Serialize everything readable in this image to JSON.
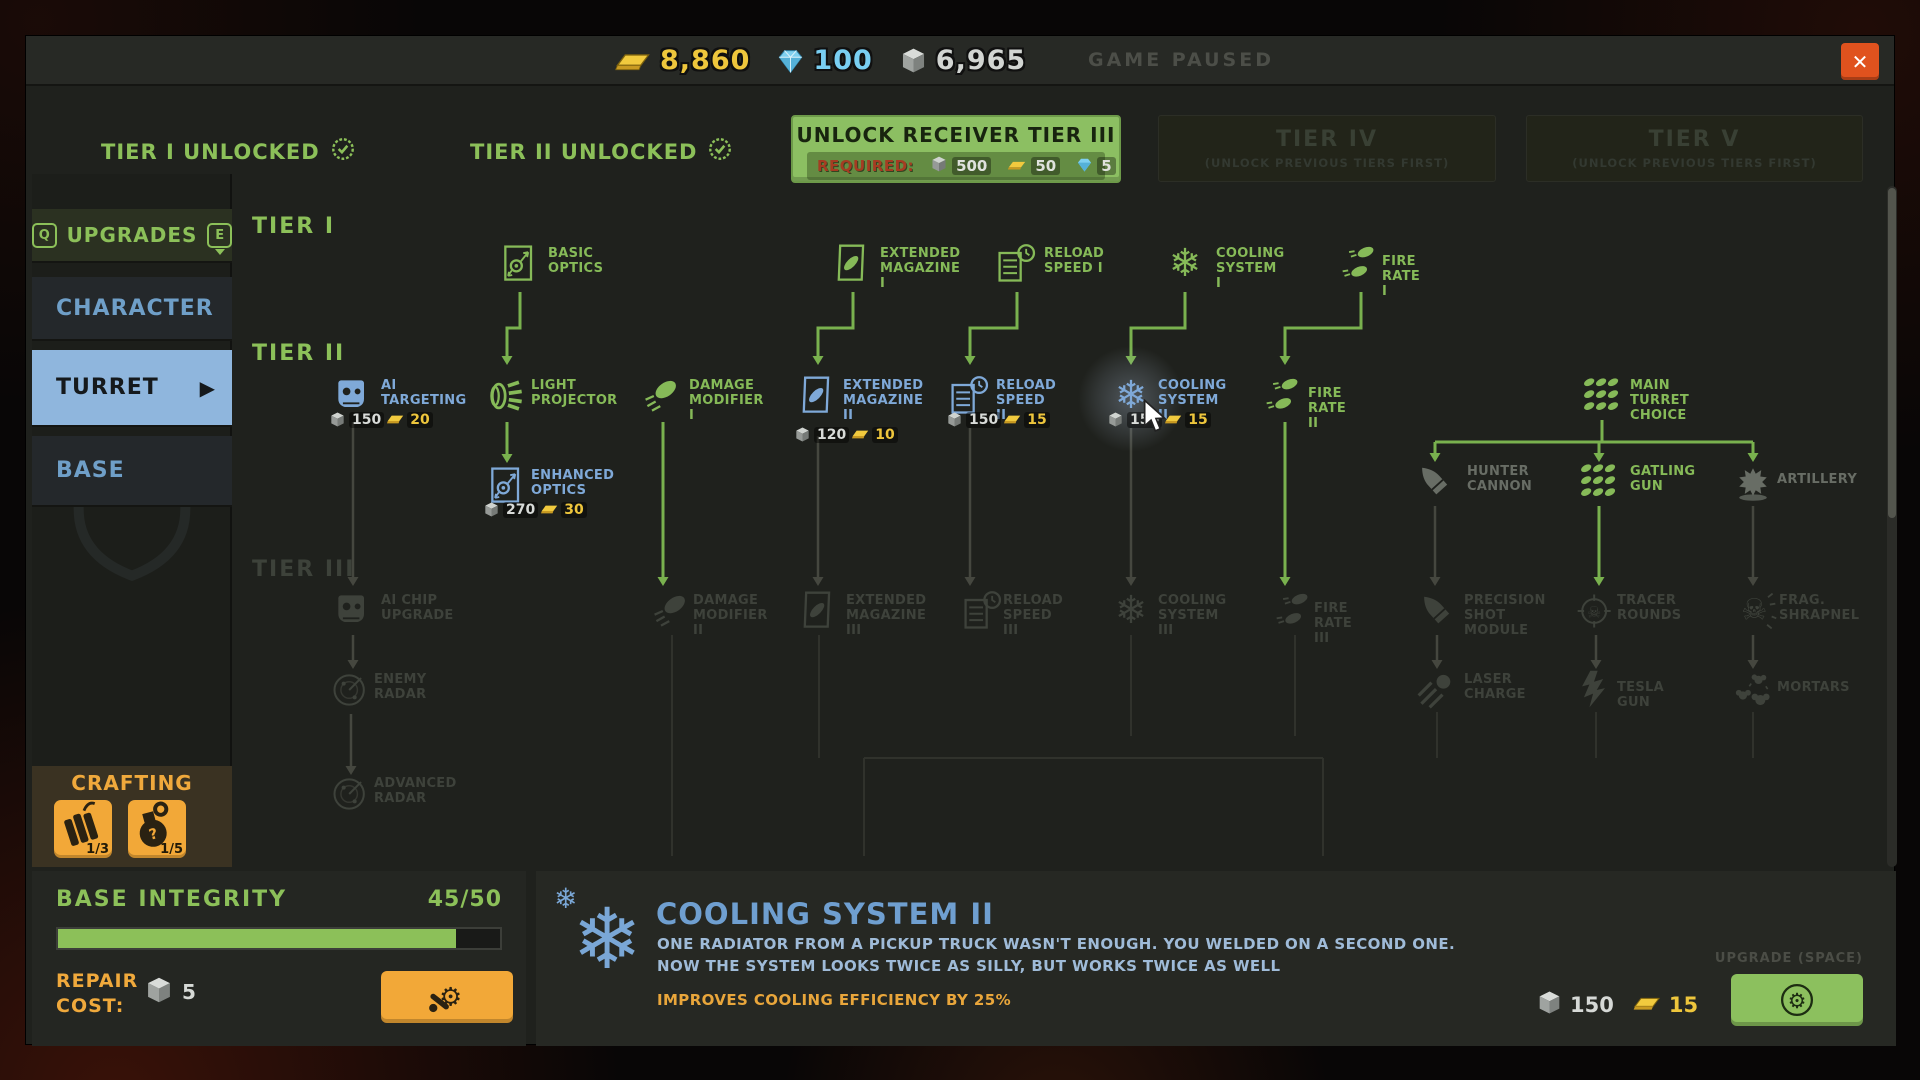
{
  "topbar": {
    "gold": "8,860",
    "diamond": "100",
    "metal": "6,965",
    "paused": "GAME PAUSED",
    "close": "✕"
  },
  "tier_bar": {
    "tier1_unlocked": "TIER I UNLOCKED",
    "tier2_unlocked": "TIER II UNLOCKED",
    "unlock_button": {
      "label": "UNLOCK RECEIVER TIER III",
      "required": "REQUIRED:",
      "metal": "500",
      "gold": "50",
      "diamond": "5"
    },
    "tier4": {
      "title": "TIER IV",
      "subtitle": "(UNLOCK PREVIOUS TIERS FIRST)"
    },
    "tier5": {
      "title": "TIER V",
      "subtitle": "(UNLOCK PREVIOUS TIERS FIRST)"
    }
  },
  "sidebar": {
    "key_left": "Q",
    "title": "UPGRADES",
    "key_right": "E",
    "tabs": [
      {
        "id": "character",
        "label": "CHARACTER",
        "selected": false
      },
      {
        "id": "turret",
        "label": "TURRET",
        "selected": true
      },
      {
        "id": "base",
        "label": "BASE",
        "selected": false
      }
    ]
  },
  "tree": {
    "section_labels": {
      "tier1": "TIER I",
      "tier2": "TIER II",
      "tier3": "TIER III"
    },
    "nodes": [
      {
        "id": "basic-optics",
        "label": "BASIC\nOPTICS",
        "state": "green",
        "icon": "optics"
      },
      {
        "id": "extended-magazine-1",
        "label": "EXTENDED\nMAGAZINE I",
        "state": "green",
        "icon": "mag"
      },
      {
        "id": "reload-speed-1",
        "label": "RELOAD\nSPEED I",
        "state": "green",
        "icon": "reload"
      },
      {
        "id": "cooling-system-1",
        "label": "COOLING\nSYSTEM I",
        "state": "green",
        "icon": "snow"
      },
      {
        "id": "fire-rate-1",
        "label": "FIRE RATE I",
        "state": "green",
        "icon": "bullets2"
      },
      {
        "id": "ai-targeting",
        "label": "AI\nTARGETING",
        "state": "blue",
        "icon": "robot",
        "cost_metal": "150",
        "cost_gold": "20"
      },
      {
        "id": "light-projector",
        "label": "LIGHT\nPROJECTOR",
        "state": "green",
        "icon": "spotlight"
      },
      {
        "id": "damage-modifier-1",
        "label": "DAMAGE\nMODIFIER I",
        "state": "green",
        "icon": "bullet"
      },
      {
        "id": "extended-magazine-2",
        "label": "EXTENDED\nMAGAZINE\nII",
        "state": "blue",
        "icon": "mag",
        "cost_metal": "120",
        "cost_gold": "10"
      },
      {
        "id": "reload-speed-2",
        "label": "RELOAD\nSPEED II",
        "state": "blue",
        "icon": "reload",
        "cost_metal": "150",
        "cost_gold": "15"
      },
      {
        "id": "cooling-system-2",
        "label": "COOLING\nSYSTEM II",
        "state": "blue",
        "icon": "snow",
        "cost_metal": "150",
        "cost_gold": "15",
        "highlight": true
      },
      {
        "id": "fire-rate-2",
        "label": "FIRE RATE II",
        "state": "green",
        "icon": "bullets2"
      },
      {
        "id": "main-turret-choice",
        "label": "MAIN\nTURRET\nCHOICE",
        "state": "green",
        "icon": "bullets9"
      },
      {
        "id": "enhanced-optics",
        "label": "ENHANCED\nOPTICS",
        "state": "blue",
        "icon": "optics",
        "cost_metal": "270",
        "cost_gold": "30"
      },
      {
        "id": "hunter-cannon",
        "label": "HUNTER\nCANNON",
        "state": "mid",
        "icon": "bigbullet"
      },
      {
        "id": "gatling-gun",
        "label": "GATLING\nGUN",
        "state": "green",
        "icon": "bullets9"
      },
      {
        "id": "artillery",
        "label": "ARTILLERY",
        "state": "mid",
        "icon": "explosion"
      },
      {
        "id": "ai-chip-upgrade",
        "label": "AI CHIP\nUPGRADE",
        "state": "dim",
        "icon": "robot"
      },
      {
        "id": "damage-modifier-2",
        "label": "DAMAGE\nMODIFIER II",
        "state": "dim",
        "icon": "bullet"
      },
      {
        "id": "extended-magazine-3",
        "label": "EXTENDED\nMAGAZINE\nIII",
        "state": "dim",
        "icon": "mag"
      },
      {
        "id": "reload-speed-3",
        "label": "RELOAD\nSPEED III",
        "state": "dim",
        "icon": "reload"
      },
      {
        "id": "cooling-system-3",
        "label": "COOLING\nSYSTEM III",
        "state": "dim",
        "icon": "snow"
      },
      {
        "id": "fire-rate-3",
        "label": "FIRE RATE III",
        "state": "dim",
        "icon": "bullets2"
      },
      {
        "id": "precision-shot-module",
        "label": "PRECISION\nSHOT\nMODULE",
        "state": "dim",
        "icon": "bigbullet"
      },
      {
        "id": "tracer-rounds",
        "label": "TRACER\nROUNDS",
        "state": "dim",
        "icon": "skulltarget"
      },
      {
        "id": "frag-shrapnel",
        "label": "FRAG.\nSHRAPNEL",
        "state": "dim",
        "icon": "fragskull"
      },
      {
        "id": "enemy-radar",
        "label": "ENEMY\nRADAR",
        "state": "dim",
        "icon": "radar"
      },
      {
        "id": "laser-charge",
        "label": "LASER\nCHARGE",
        "state": "dim",
        "icon": "laser"
      },
      {
        "id": "tesla-gun",
        "label": "TESLA GUN",
        "state": "dim",
        "icon": "tesla"
      },
      {
        "id": "mortars",
        "label": "MORTARS",
        "state": "dim",
        "icon": "mortars"
      },
      {
        "id": "advanced-radar",
        "label": "ADVANCED\nRADAR",
        "state": "dim",
        "icon": "radar"
      }
    ]
  },
  "crafting": {
    "title": "CRAFTING",
    "items": [
      {
        "id": "explosive",
        "count": "1/3"
      },
      {
        "id": "grenade",
        "count": "1/5"
      }
    ]
  },
  "base_panel": {
    "title": "BASE INTEGRITY",
    "value": "45/50",
    "progress_pct": 90,
    "repair_label": "REPAIR\nCOST:",
    "repair_metal": "5"
  },
  "detail_panel": {
    "title": "COOLING SYSTEM II",
    "desc_line1": "ONE RADIATOR FROM A PICKUP TRUCK WASN'T ENOUGH. YOU WELDED ON A SECOND ONE.",
    "desc_line2": "NOW THE SYSTEM LOOKS TWICE AS SILLY, BUT WORKS TWICE AS WELL",
    "effect": "IMPROVES COOLING EFFICIENCY BY 25%",
    "upgrade_hint": "UPGRADE (SPACE)",
    "cost_metal": "150",
    "cost_gold": "15"
  }
}
